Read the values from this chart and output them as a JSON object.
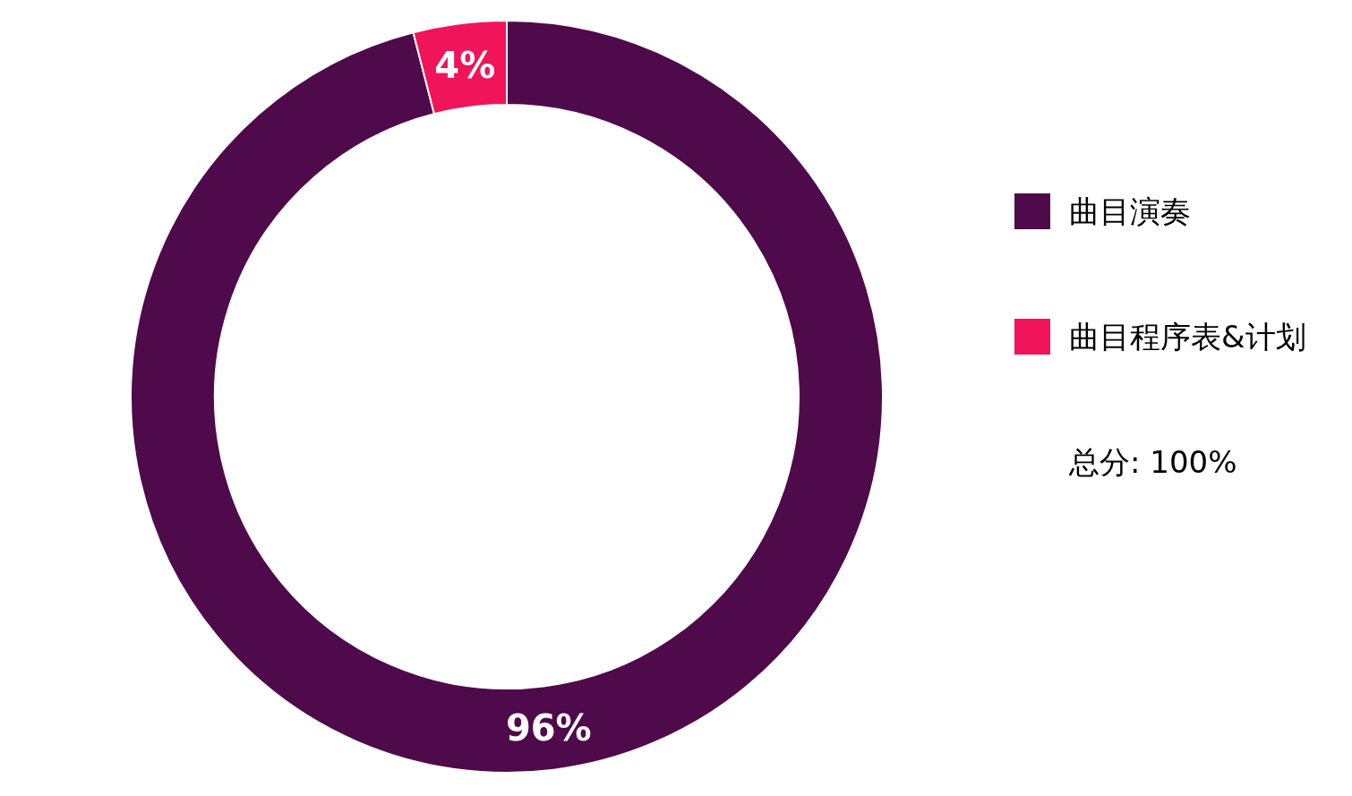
{
  "chart_data": {
    "type": "donut",
    "categories": [
      "曲目演奏",
      "曲目程序表&计划"
    ],
    "values": [
      96,
      4
    ],
    "colors": [
      "#4f0a4b",
      "#f0145a"
    ],
    "value_labels": [
      "96%",
      "4%"
    ],
    "legend": "right",
    "annotations": [
      "总分: 100%"
    ]
  }
}
